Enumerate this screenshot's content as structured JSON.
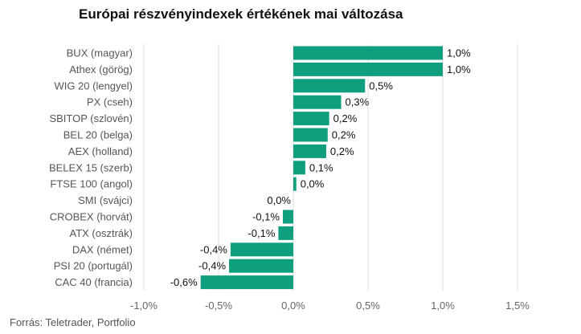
{
  "chart_data": {
    "type": "bar",
    "orientation": "horizontal",
    "title": "Európai részvényindexek értékének mai változása",
    "categories": [
      "BUX (magyar)",
      "Athex (görög)",
      "WIG 20 (lengyel)",
      "PX (cseh)",
      "SBITOP (szlovén)",
      "BEL 20 (belga)",
      "AEX (holland)",
      "BELEX 15 (szerb)",
      "FTSE 100 (angol)",
      "SMI (svájci)",
      "CROBEX (horvát)",
      "ATX (osztrák)",
      "DAX (német)",
      "PSI 20 (portugál)",
      "CAC 40 (francia)"
    ],
    "values": [
      1.0,
      1.0,
      0.48,
      0.32,
      0.24,
      0.23,
      0.22,
      0.08,
      0.02,
      0.0,
      -0.07,
      -0.1,
      -0.42,
      -0.43,
      -0.62
    ],
    "value_labels": [
      "1,0%",
      "1,0%",
      "0,5%",
      "0,3%",
      "0,2%",
      "0,2%",
      "0,2%",
      "0,1%",
      "0,0%",
      "0,0%",
      "-0,1%",
      "-0,1%",
      "-0,4%",
      "-0,4%",
      "-0,6%"
    ],
    "xlim": [
      -1.0,
      1.5
    ],
    "xticks": [
      -1.0,
      -0.5,
      0.0,
      0.5,
      1.0,
      1.5
    ],
    "xtick_labels": [
      "-1,0%",
      "-0,5%",
      "0,0%",
      "0,5%",
      "1,0%",
      "1,5%"
    ],
    "grid": true,
    "bar_color": "#0f9f7f"
  },
  "source": "Forrás: Teletrader, Portfolio"
}
